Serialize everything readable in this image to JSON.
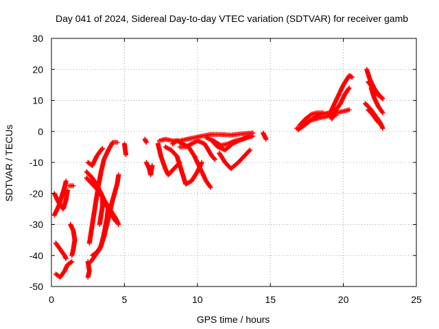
{
  "chart_data": {
    "type": "scatter",
    "title": "Day 041 of 2024, Sidereal Day-to-day VTEC variation (SDTVAR) for receiver gamb",
    "xlabel": "GPS time / hours",
    "ylabel": "SDTVAR / TECUs",
    "xlim": [
      0,
      25
    ],
    "ylim": [
      -50,
      30
    ],
    "xticks": [
      0,
      5,
      10,
      15,
      20,
      25
    ],
    "yticks": [
      -50,
      -40,
      -30,
      -20,
      -10,
      0,
      10,
      20,
      30
    ],
    "xtick_labels": [
      "0",
      "5",
      "10",
      "15",
      "20",
      "25"
    ],
    "ytick_labels": [
      "-50",
      "-40",
      "-30",
      "-20",
      "-10",
      "0",
      "10",
      "20",
      "30"
    ],
    "grid": true,
    "marker": "plus",
    "color": "#ff0000",
    "tracks": [
      [
        [
          0.2,
          -20
        ],
        [
          0.5,
          -23
        ],
        [
          0.8,
          -25
        ],
        [
          1.0,
          -22
        ],
        [
          1.1,
          -19
        ]
      ],
      [
        [
          0.2,
          -27
        ],
        [
          0.5,
          -24
        ],
        [
          0.7,
          -21
        ],
        [
          0.9,
          -18
        ],
        [
          1.0,
          -16
        ]
      ],
      [
        [
          0.3,
          -36
        ],
        [
          0.6,
          -38
        ],
        [
          0.9,
          -40
        ],
        [
          1.0,
          -41
        ]
      ],
      [
        [
          0.3,
          -46
        ],
        [
          0.6,
          -47
        ],
        [
          0.9,
          -45
        ],
        [
          1.1,
          -43
        ],
        [
          1.4,
          -42
        ]
      ],
      [
        [
          1.2,
          -17.5
        ],
        [
          1.5,
          -17.5
        ]
      ],
      [
        [
          1.3,
          -30
        ],
        [
          1.5,
          -32
        ],
        [
          1.6,
          -35
        ],
        [
          1.5,
          -38
        ],
        [
          1.4,
          -40
        ]
      ],
      [
        [
          2.4,
          -13
        ],
        [
          2.8,
          -15
        ],
        [
          3.2,
          -18
        ],
        [
          3.6,
          -22
        ],
        [
          4.0,
          -25
        ],
        [
          4.4,
          -28
        ],
        [
          4.6,
          -30
        ]
      ],
      [
        [
          2.4,
          -15
        ],
        [
          2.8,
          -17
        ],
        [
          3.2,
          -19
        ],
        [
          3.6,
          -22
        ],
        [
          4.0,
          -26
        ],
        [
          4.4,
          -29
        ]
      ],
      [
        [
          2.5,
          -10
        ],
        [
          2.8,
          -11
        ],
        [
          3.1,
          -8
        ],
        [
          3.4,
          -6
        ],
        [
          3.5,
          -5.5
        ]
      ],
      [
        [
          2.5,
          -42
        ],
        [
          2.6,
          -45
        ],
        [
          2.5,
          -47
        ]
      ],
      [
        [
          2.7,
          -42
        ],
        [
          3.0,
          -40
        ],
        [
          3.3,
          -38
        ],
        [
          3.6,
          -34
        ],
        [
          3.9,
          -28
        ],
        [
          4.2,
          -22
        ],
        [
          4.5,
          -17
        ],
        [
          4.6,
          -14
        ]
      ],
      [
        [
          2.8,
          -40
        ],
        [
          3.1,
          -39
        ],
        [
          3.4,
          -37
        ],
        [
          3.6,
          -33
        ],
        [
          3.8,
          -28
        ],
        [
          3.9,
          -24
        ]
      ],
      [
        [
          2.6,
          -36
        ],
        [
          2.8,
          -30
        ],
        [
          3.0,
          -24
        ],
        [
          3.2,
          -18
        ],
        [
          3.4,
          -13
        ],
        [
          3.6,
          -9
        ],
        [
          3.9,
          -6
        ],
        [
          4.2,
          -3.5
        ],
        [
          4.5,
          -3.5
        ]
      ],
      [
        [
          3.3,
          -30
        ],
        [
          3.4,
          -27
        ],
        [
          3.5,
          -24
        ],
        [
          3.5,
          -21
        ]
      ],
      [
        [
          5.0,
          -4
        ],
        [
          5.1,
          -7.5
        ]
      ],
      [
        [
          6.4,
          -2.5
        ],
        [
          6.5,
          -3.5
        ]
      ],
      [
        [
          6.5,
          -10
        ],
        [
          6.7,
          -12
        ],
        [
          6.8,
          -14
        ],
        [
          6.9,
          -11
        ]
      ],
      [
        [
          7.3,
          -4
        ],
        [
          7.5,
          -8
        ],
        [
          7.8,
          -12
        ],
        [
          8.0,
          -14
        ],
        [
          8.4,
          -12
        ],
        [
          8.8,
          -10
        ]
      ],
      [
        [
          7.4,
          -3
        ],
        [
          7.8,
          -2.5
        ],
        [
          8.3,
          -3
        ],
        [
          8.8,
          -3
        ],
        [
          9.3,
          -2.5
        ],
        [
          9.8,
          -2
        ],
        [
          10.3,
          -1.5
        ],
        [
          10.9,
          -1
        ],
        [
          11.6,
          -1
        ],
        [
          12.3,
          -1.2
        ],
        [
          13.0,
          -0.8
        ],
        [
          13.8,
          -0.5
        ]
      ],
      [
        [
          7.8,
          -5
        ],
        [
          8.2,
          -6
        ],
        [
          8.6,
          -8
        ],
        [
          8.8,
          -11
        ],
        [
          9.0,
          -14
        ],
        [
          9.2,
          -17
        ],
        [
          9.6,
          -16
        ],
        [
          10.0,
          -13
        ],
        [
          10.3,
          -10
        ]
      ],
      [
        [
          8.3,
          -4
        ],
        [
          8.6,
          -3
        ],
        [
          9.0,
          -4
        ],
        [
          9.4,
          -5
        ],
        [
          9.8,
          -8
        ],
        [
          10.2,
          -12
        ],
        [
          10.6,
          -16
        ],
        [
          10.9,
          -18
        ]
      ],
      [
        [
          8.8,
          -5
        ],
        [
          9.2,
          -5
        ],
        [
          9.6,
          -4
        ],
        [
          10.0,
          -3
        ],
        [
          10.5,
          -4
        ],
        [
          11.0,
          -8
        ],
        [
          11.2,
          -9
        ]
      ],
      [
        [
          10.6,
          -2
        ],
        [
          11.1,
          -3
        ],
        [
          11.6,
          -4.5
        ],
        [
          12.1,
          -4
        ],
        [
          12.6,
          -3
        ],
        [
          13.1,
          -2.5
        ],
        [
          13.6,
          -1.5
        ]
      ],
      [
        [
          11.0,
          -3
        ],
        [
          11.4,
          -5
        ],
        [
          11.9,
          -6
        ],
        [
          12.4,
          -4
        ],
        [
          12.9,
          -2.8
        ],
        [
          13.4,
          -2
        ],
        [
          13.8,
          -1.5
        ]
      ],
      [
        [
          11.5,
          -7
        ],
        [
          11.9,
          -10
        ],
        [
          12.3,
          -12
        ],
        [
          12.8,
          -10
        ],
        [
          13.2,
          -8
        ],
        [
          13.6,
          -6
        ]
      ],
      [
        [
          14.5,
          -0.5
        ],
        [
          14.6,
          -1.5
        ],
        [
          14.7,
          -2.5
        ]
      ],
      [
        [
          16.8,
          1
        ],
        [
          17.2,
          1.5
        ],
        [
          17.6,
          3
        ],
        [
          18.0,
          4.5
        ],
        [
          18.5,
          5.5
        ],
        [
          19.0,
          6
        ],
        [
          19.5,
          6
        ],
        [
          20.0,
          6.5
        ],
        [
          20.4,
          7
        ]
      ],
      [
        [
          16.9,
          0.5
        ],
        [
          17.3,
          2
        ],
        [
          17.7,
          3.5
        ],
        [
          18.1,
          4
        ],
        [
          18.5,
          4.5
        ],
        [
          19.0,
          5
        ],
        [
          19.5,
          5.2
        ]
      ],
      [
        [
          17.0,
          2
        ],
        [
          17.4,
          4
        ],
        [
          17.8,
          5.5
        ],
        [
          18.2,
          6
        ],
        [
          18.6,
          6
        ]
      ],
      [
        [
          19.0,
          5
        ],
        [
          19.3,
          8
        ],
        [
          19.6,
          11
        ],
        [
          20.0,
          15
        ],
        [
          20.4,
          18
        ],
        [
          20.6,
          17.5
        ]
      ],
      [
        [
          19.2,
          4
        ],
        [
          19.5,
          7
        ],
        [
          19.8,
          9
        ],
        [
          20.1,
          12
        ],
        [
          20.4,
          14
        ]
      ],
      [
        [
          21.6,
          20
        ],
        [
          21.8,
          17
        ],
        [
          22.1,
          14
        ],
        [
          22.4,
          12
        ],
        [
          22.7,
          10.5
        ]
      ],
      [
        [
          21.7,
          16
        ],
        [
          22.0,
          14
        ],
        [
          22.3,
          12
        ],
        [
          22.6,
          11
        ]
      ],
      [
        [
          21.5,
          9
        ],
        [
          21.9,
          7
        ],
        [
          22.2,
          5
        ],
        [
          22.5,
          3
        ],
        [
          22.7,
          1
        ]
      ],
      [
        [
          21.7,
          7
        ],
        [
          22.0,
          5.5
        ],
        [
          22.3,
          3.5
        ],
        [
          22.6,
          2
        ]
      ],
      [
        [
          21.9,
          14
        ],
        [
          22.1,
          11
        ],
        [
          22.4,
          8
        ],
        [
          22.7,
          6
        ]
      ]
    ]
  }
}
